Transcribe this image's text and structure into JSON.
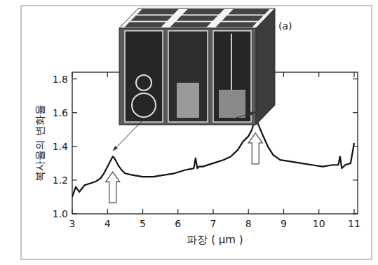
{
  "chart_data": {
    "type": "line",
    "x_label": "파장 ( μm )",
    "y_label": "복사율의 변화율",
    "annotations": [
      {
        "text": "(a)"
      }
    ],
    "x": [
      3.0,
      3.1,
      3.2,
      3.35,
      3.5,
      3.65,
      3.8,
      3.9,
      4.0,
      4.1,
      4.15,
      4.2,
      4.3,
      4.4,
      4.5,
      4.7,
      5.0,
      5.3,
      5.6,
      5.9,
      6.2,
      6.45,
      6.5,
      6.55,
      6.6,
      6.7,
      7.0,
      7.3,
      7.5,
      7.7,
      7.85,
      8.0,
      8.1,
      8.2,
      8.3,
      8.4,
      8.55,
      8.7,
      8.9,
      9.2,
      9.5,
      9.8,
      10.1,
      10.4,
      10.55,
      10.6,
      10.65,
      10.75,
      10.9,
      11.0
    ],
    "series": [
      {
        "color": "#111111",
        "line_style": "solid",
        "values": [
          1.1,
          1.16,
          1.13,
          1.17,
          1.18,
          1.19,
          1.21,
          1.24,
          1.28,
          1.32,
          1.34,
          1.33,
          1.29,
          1.26,
          1.24,
          1.23,
          1.22,
          1.22,
          1.23,
          1.24,
          1.26,
          1.27,
          1.33,
          1.27,
          1.28,
          1.28,
          1.3,
          1.32,
          1.34,
          1.38,
          1.43,
          1.46,
          1.5,
          1.57,
          1.52,
          1.47,
          1.4,
          1.35,
          1.32,
          1.31,
          1.3,
          1.29,
          1.28,
          1.29,
          1.29,
          1.34,
          1.27,
          1.29,
          1.3,
          1.42
        ]
      }
    ],
    "xlim": [
      3,
      11.1
    ],
    "ylim": [
      1.0,
      1.84
    ],
    "xticks": [
      3,
      4,
      5,
      6,
      7,
      8,
      9,
      10,
      11
    ],
    "yticks": [
      {
        "value": 1.0,
        "label": "1.0"
      },
      {
        "value": 1.2,
        "label": "1.2"
      },
      {
        "value": 1.4,
        "label": "1.4"
      },
      {
        "value": 1.6,
        "label": "1.6"
      },
      {
        "value": 1.8,
        "label": "1.8"
      }
    ],
    "grid": false
  }
}
